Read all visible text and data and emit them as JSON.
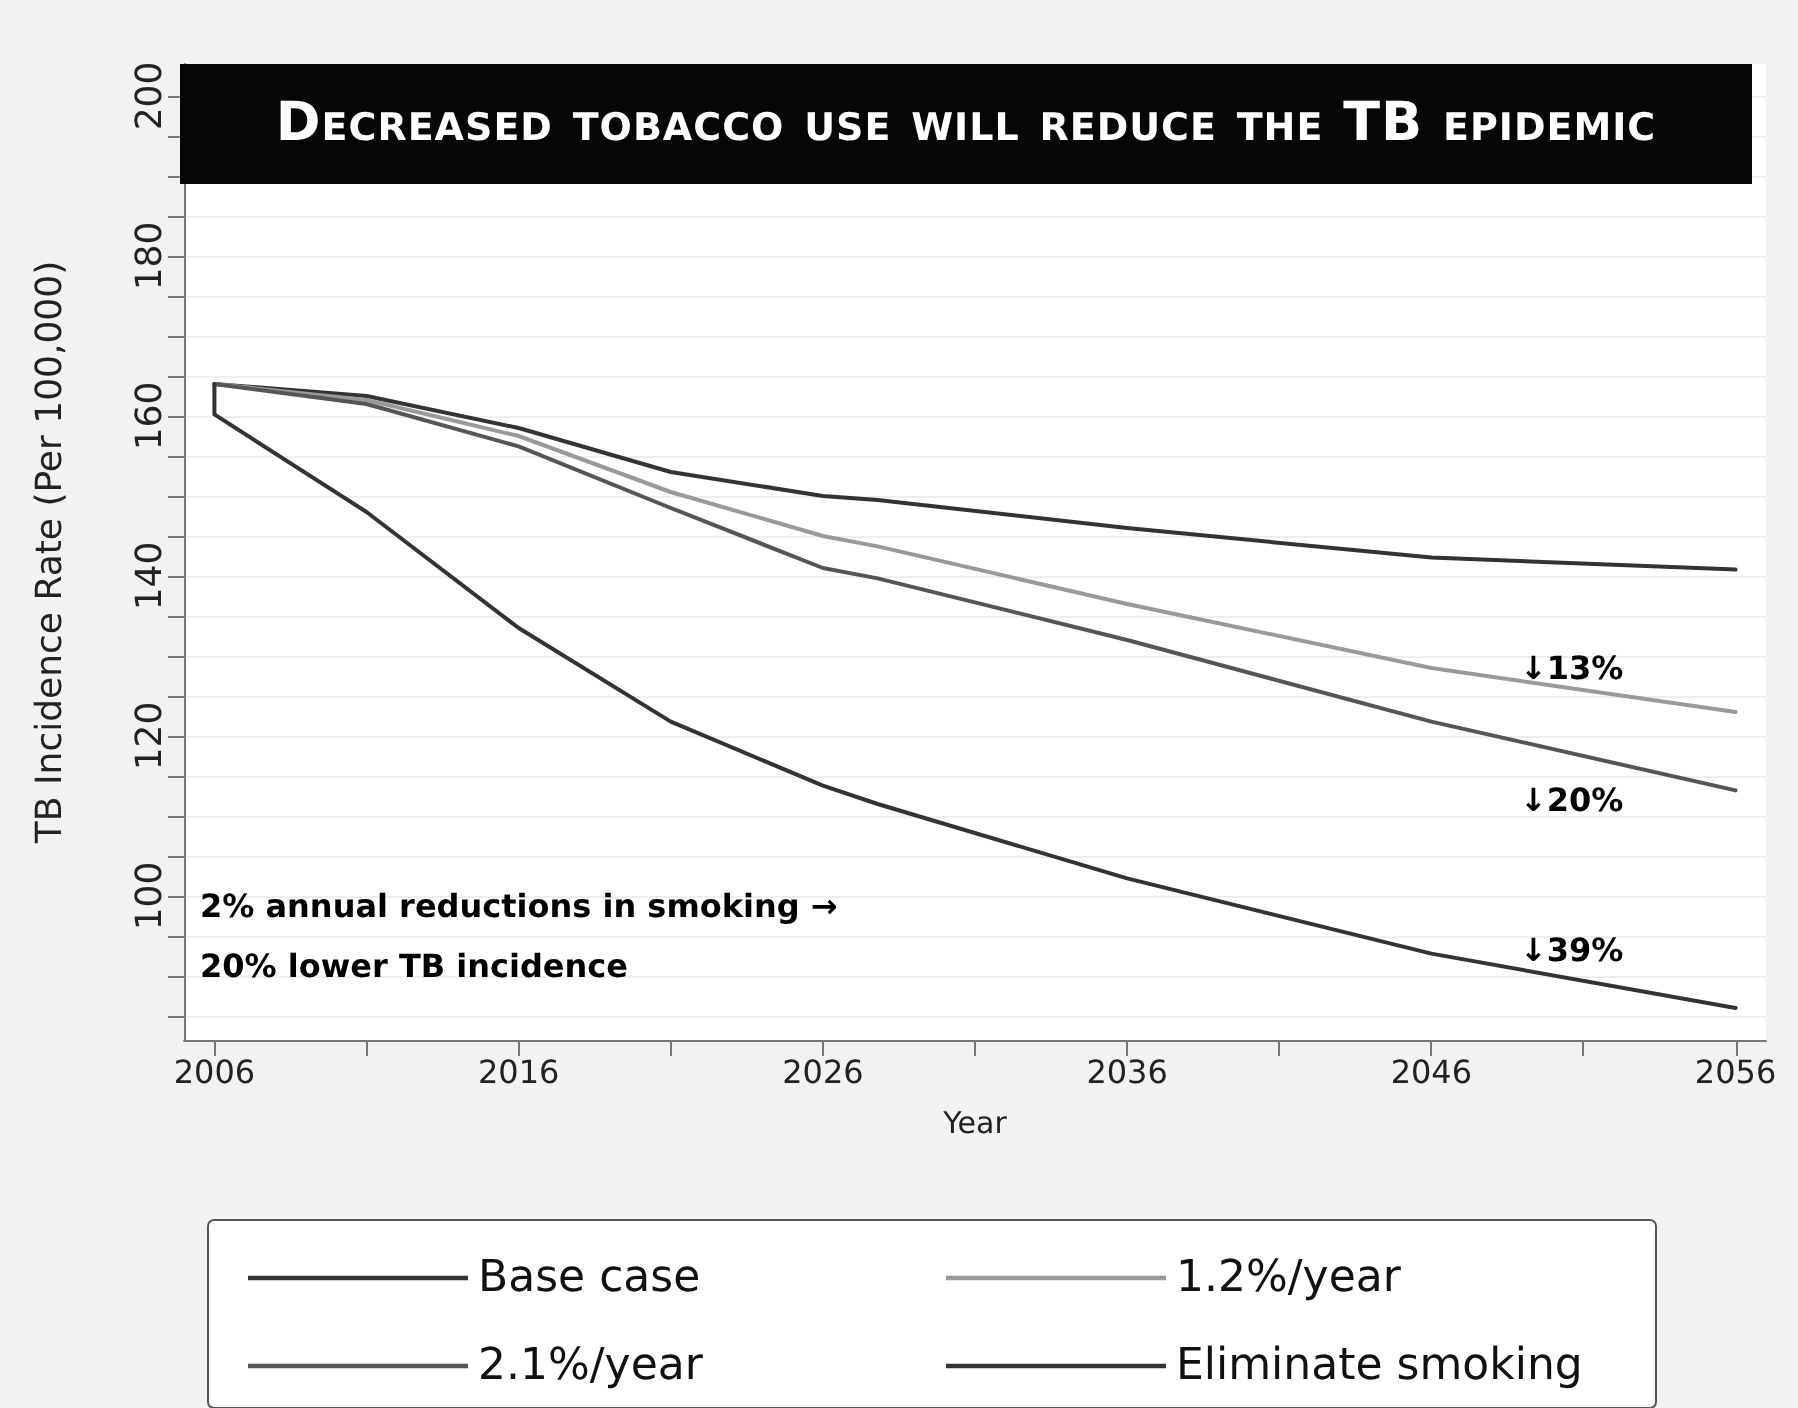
{
  "chart_data": {
    "type": "line",
    "title": "Decreased tobacco use will reduce the TB epidemic",
    "xlabel": "Year",
    "ylabel": "TB Incidence Rate (Per 100,000)",
    "xlim": [
      2005,
      2057
    ],
    "xticks": [
      2006,
      {
        "value": 2011,
        "label": null
      },
      2016,
      {
        "value": 2021,
        "label": null
      },
      2026,
      {
        "value": 2031,
        "label": null
      },
      2036,
      {
        "value": 2041,
        "label": null
      },
      2046,
      {
        "value": 2051,
        "label": null
      },
      2056
    ],
    "ylim": [
      82,
      204
    ],
    "yticks": [
      {
        "value": 85,
        "label": null
      },
      {
        "value": 90,
        "label": null
      },
      {
        "value": 95,
        "label": null
      },
      100,
      {
        "value": 105,
        "label": null
      },
      {
        "value": 110,
        "label": null
      },
      {
        "value": 115,
        "label": null
      },
      120,
      {
        "value": 125,
        "label": null
      },
      {
        "value": 130,
        "label": null
      },
      {
        "value": 135,
        "label": null
      },
      140,
      {
        "value": 145,
        "label": null
      },
      {
        "value": 150,
        "label": null
      },
      {
        "value": 155,
        "label": null
      },
      160,
      {
        "value": 165,
        "label": null
      },
      {
        "value": 170,
        "label": null
      },
      {
        "value": 175,
        "label": null
      },
      180,
      {
        "value": 185,
        "label": null
      },
      {
        "value": 190,
        "label": null
      },
      {
        "value": 195,
        "label": null
      },
      200
    ],
    "grid": "y",
    "legend": "bottom",
    "marker": "none",
    "line_style": "solid",
    "series": [
      {
        "name": "Base case",
        "color": "#333333",
        "x": [
          2006,
          2011,
          2016,
          2021,
          2026,
          2027.8,
          2036,
          2046,
          2056
        ],
        "values": [
          164,
          162.5,
          158.5,
          153,
          150,
          149.5,
          146,
          142.3,
          140.8
        ]
      },
      {
        "name": "1.2%/year",
        "color": "#999999",
        "x": [
          2006,
          2011,
          2016,
          2021,
          2026,
          2027.8,
          2036,
          2046,
          2056
        ],
        "values": [
          164,
          162,
          157.5,
          150.5,
          145,
          143.7,
          136.5,
          128.5,
          123
        ]
      },
      {
        "name": "2.1%/year",
        "color": "#555555",
        "x": [
          2006,
          2011,
          2016,
          2021,
          2026,
          2027.8,
          2036,
          2046,
          2056
        ],
        "values": [
          164,
          161.5,
          156.2,
          148.5,
          141,
          139.7,
          132,
          121.8,
          113.2
        ]
      },
      {
        "name": "Eliminate smoking",
        "color": "#333333",
        "x": [
          2006,
          2006,
          2011,
          2016,
          2021,
          2026,
          2027.8,
          2036,
          2046,
          2056
        ],
        "values": [
          164,
          160.2,
          148,
          133.5,
          121.8,
          113.8,
          111.5,
          102.2,
          92.8,
          86
        ]
      }
    ],
    "annotations": [
      "↓13%",
      "↓20%",
      "↓39%",
      "2% annual reductions in smoking →",
      "20% lower TB incidence"
    ]
  }
}
